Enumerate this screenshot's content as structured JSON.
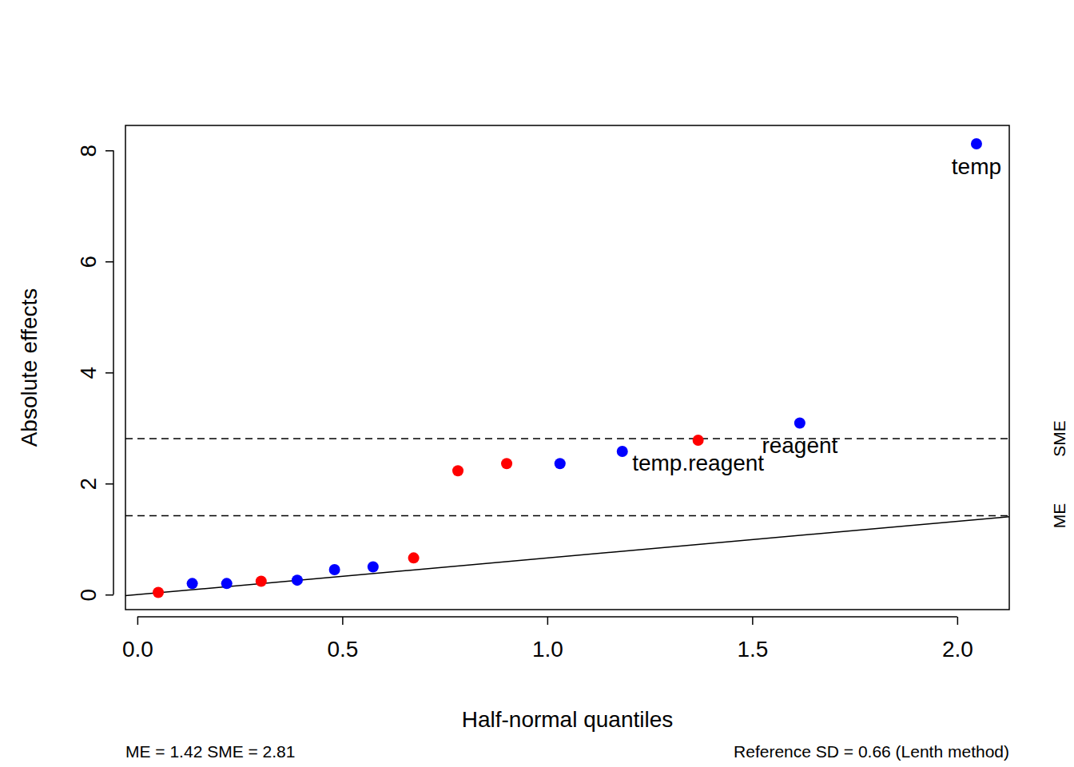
{
  "chart_data": {
    "type": "scatter",
    "x_label": "Half-normal quantiles",
    "y_label": "Absolute effects",
    "x": [
      0.051,
      0.134,
      0.218,
      0.302,
      0.39,
      0.481,
      0.575,
      0.674,
      0.782,
      0.901,
      1.031,
      1.183,
      1.368,
      1.616,
      2.047
    ],
    "values": [
      0.04,
      0.2,
      0.2,
      0.24,
      0.26,
      0.45,
      0.5,
      0.66,
      2.23,
      2.36,
      2.36,
      2.58,
      2.78,
      3.09,
      8.12
    ],
    "colors": [
      "#ff0000",
      "#0000ff",
      "#0000ff",
      "#ff0000",
      "#0000ff",
      "#0000ff",
      "#0000ff",
      "#ff0000",
      "#ff0000",
      "#ff0000",
      "#0000ff",
      "#0000ff",
      "#ff0000",
      "#0000ff",
      "#0000ff"
    ],
    "point_labels": [
      null,
      null,
      null,
      null,
      null,
      null,
      null,
      null,
      null,
      null,
      null,
      null,
      "temp.reagent",
      "reagent",
      "temp"
    ],
    "marker": "circle",
    "xlim": [
      -0.029,
      2.127
    ],
    "ylim": [
      -0.27,
      8.45
    ],
    "xticks": [
      {
        "value": 0,
        "label": "0.0"
      },
      {
        "value": 0.5,
        "label": "0.5"
      },
      {
        "value": 1,
        "label": "1.0"
      },
      {
        "value": 1.5,
        "label": "1.5"
      },
      {
        "value": 2,
        "label": "2.0"
      }
    ],
    "yticks": [
      0,
      2,
      4,
      6,
      8
    ],
    "reference_lines": [
      {
        "value": 1.42,
        "label": "ME"
      },
      {
        "value": 2.81,
        "label": "SME"
      }
    ],
    "reference_slope": 0.66,
    "footnote_left": "ME = 1.42  SME = 2.81",
    "footnote_right": "Reference SD = 0.66 (Lenth method)",
    "grid": false
  }
}
